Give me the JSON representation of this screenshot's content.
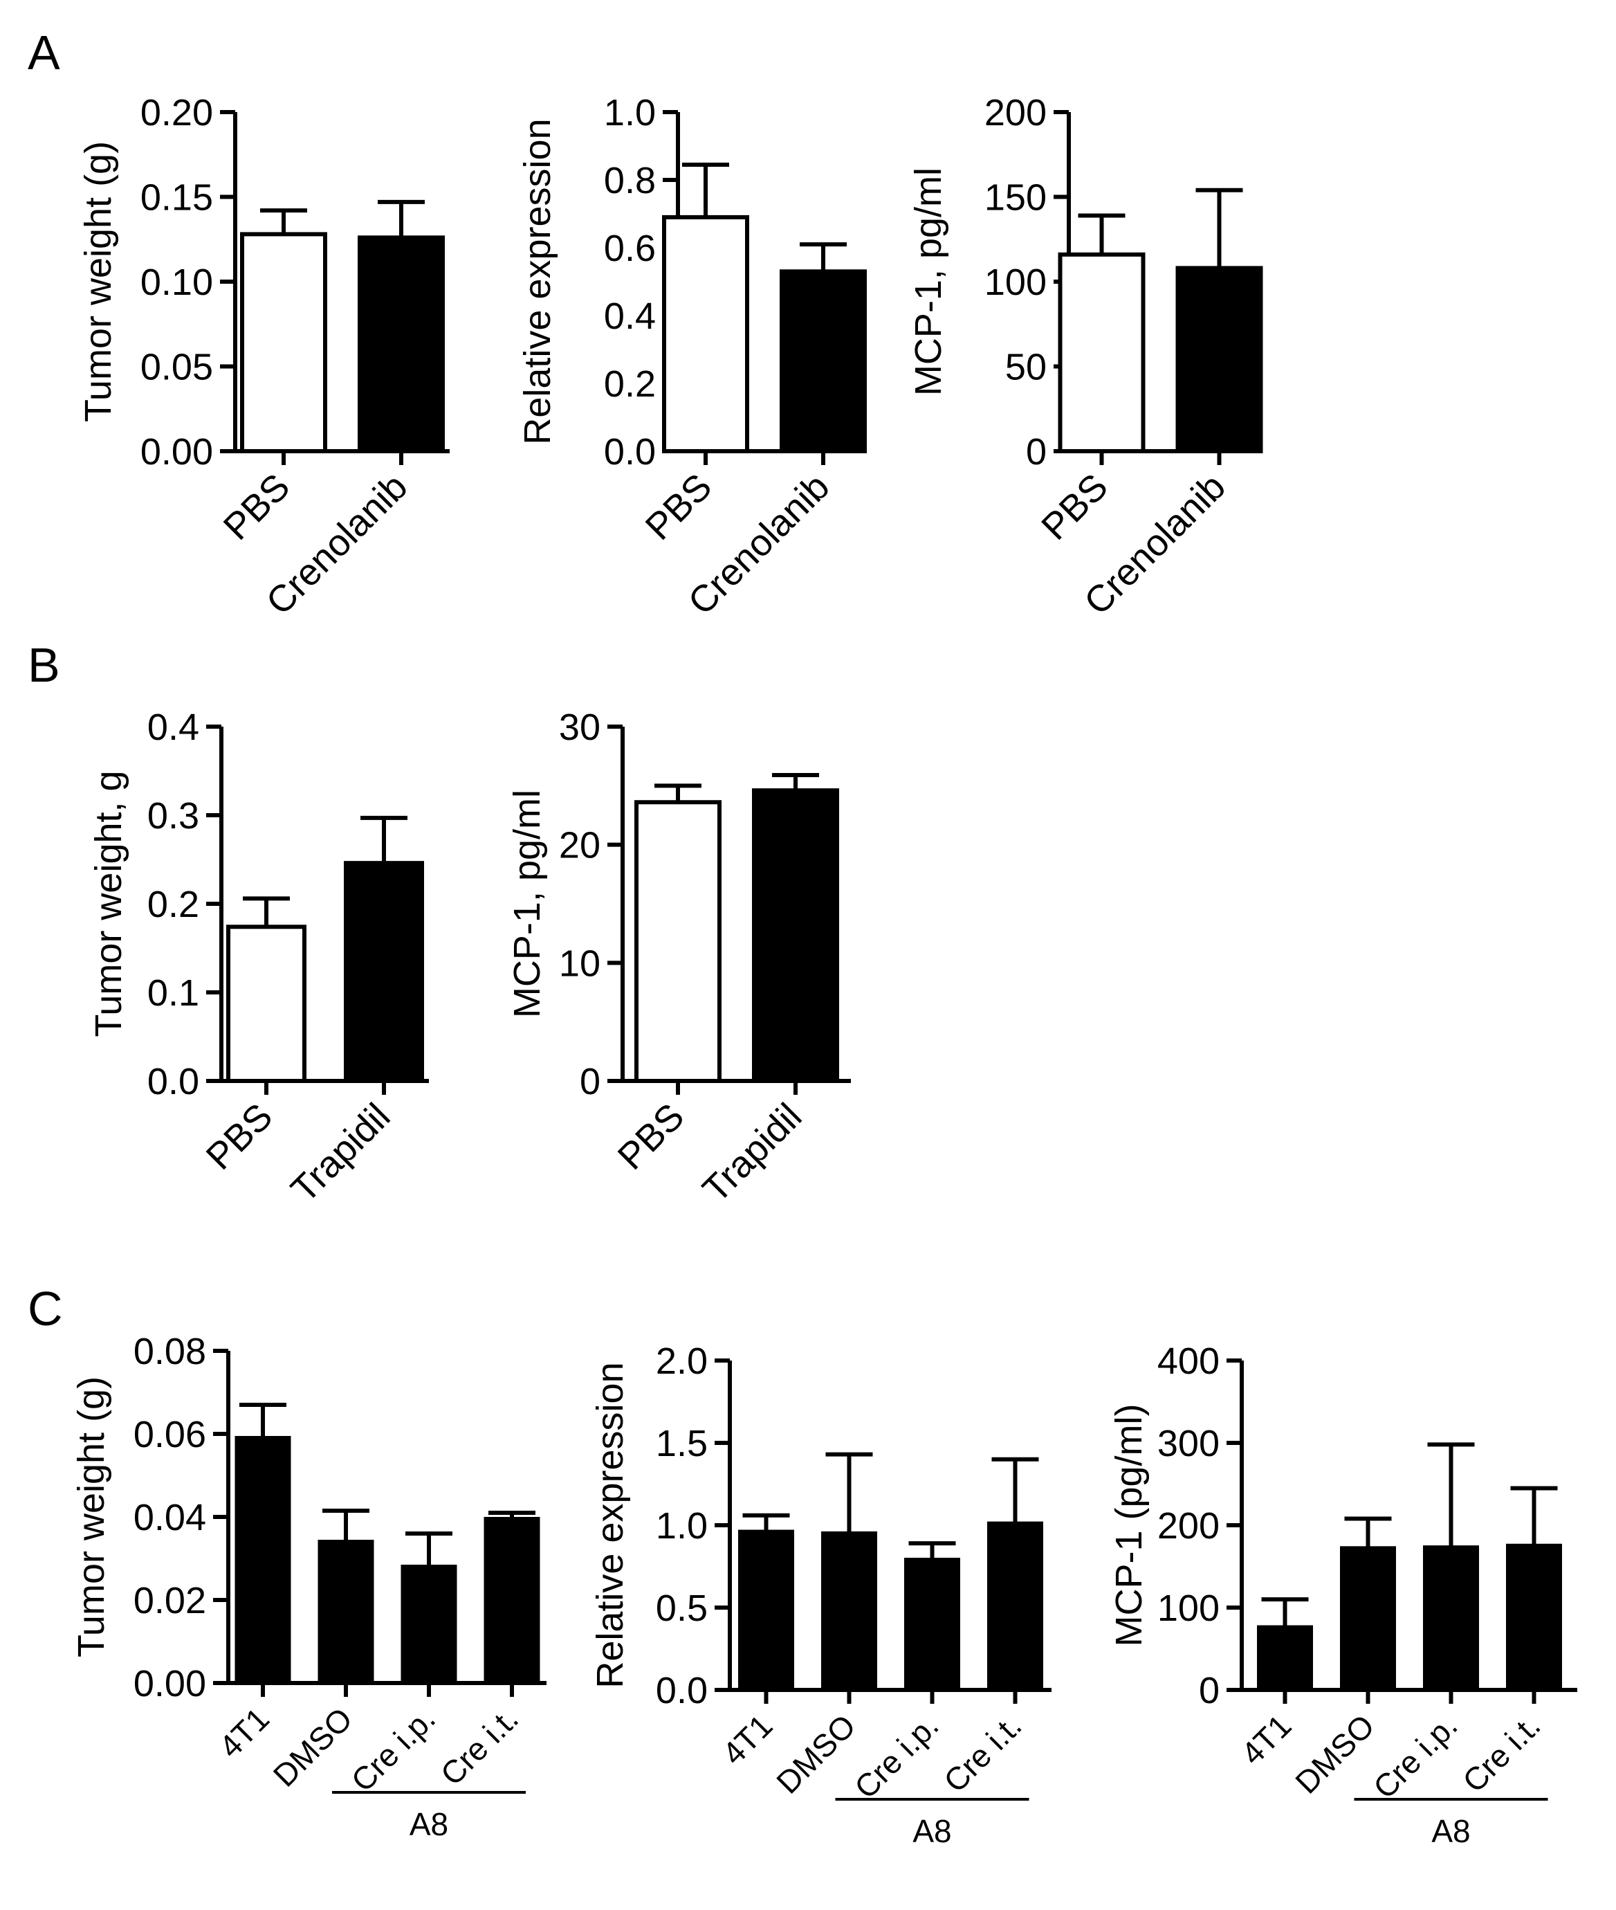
{
  "panels": [
    {
      "letter": "A"
    },
    {
      "letter": "B"
    },
    {
      "letter": "C"
    }
  ],
  "chart_data": [
    {
      "id": "A1",
      "panel": "A",
      "type": "bar",
      "title": "",
      "xlabel": "",
      "ylabel": "Tumor weight (g)",
      "ylim": [
        0,
        0.2
      ],
      "yticks": [
        "0.00",
        "0.05",
        "0.10",
        "0.15",
        "0.20"
      ],
      "categories": [
        "PBS",
        "Crenolanib"
      ],
      "values": [
        0.128,
        0.126
      ],
      "errors": [
        0.014,
        0.021
      ],
      "fills": [
        "#ffffff",
        "#000000"
      ]
    },
    {
      "id": "A2",
      "panel": "A",
      "type": "bar",
      "title": "",
      "xlabel": "",
      "ylabel": "Relative expression",
      "ylim": [
        0,
        1.0
      ],
      "yticks": [
        "0.0",
        "0.2",
        "0.4",
        "0.6",
        "0.8",
        "1.0"
      ],
      "categories": [
        "PBS",
        "Crenolanib"
      ],
      "values": [
        0.69,
        0.53
      ],
      "errors": [
        0.155,
        0.08
      ],
      "fills": [
        "#ffffff",
        "#000000"
      ]
    },
    {
      "id": "A3",
      "panel": "A",
      "type": "bar",
      "title": "",
      "xlabel": "",
      "ylabel": "MCP-1, pg/ml",
      "ylim": [
        0,
        200
      ],
      "yticks": [
        "0",
        "50",
        "100",
        "150",
        "200"
      ],
      "categories": [
        "PBS",
        "Crenolanib"
      ],
      "values": [
        116,
        108
      ],
      "errors": [
        23,
        46
      ],
      "fills": [
        "#ffffff",
        "#000000"
      ]
    },
    {
      "id": "B1",
      "panel": "B",
      "type": "bar",
      "title": "",
      "xlabel": "",
      "ylabel": "Tumor weight, g",
      "ylim": [
        0,
        0.4
      ],
      "yticks": [
        "0.0",
        "0.1",
        "0.2",
        "0.3",
        "0.4"
      ],
      "categories": [
        "PBS",
        "Trapidil"
      ],
      "values": [
        0.174,
        0.246
      ],
      "errors": [
        0.032,
        0.051
      ],
      "fills": [
        "#ffffff",
        "#000000"
      ]
    },
    {
      "id": "B2",
      "panel": "B",
      "type": "bar",
      "title": "",
      "xlabel": "",
      "ylabel": "MCP-1, pg/ml",
      "ylim": [
        0,
        30
      ],
      "yticks": [
        "0",
        "10",
        "20",
        "30"
      ],
      "categories": [
        "PBS",
        "Trapidil"
      ],
      "values": [
        23.6,
        24.6
      ],
      "errors": [
        1.4,
        1.3
      ],
      "fills": [
        "#ffffff",
        "#000000"
      ]
    },
    {
      "id": "C1",
      "panel": "C",
      "type": "bar",
      "title": "",
      "xlabel": "",
      "ylabel": "Tumor weight (g)",
      "ylim": [
        0,
        0.08
      ],
      "yticks": [
        "0.00",
        "0.02",
        "0.04",
        "0.06",
        "0.08"
      ],
      "categories": [
        "4T1",
        "DMSO",
        "Cre i.p.",
        "Cre i.t."
      ],
      "values": [
        0.059,
        0.034,
        0.028,
        0.0395
      ],
      "errors": [
        0.008,
        0.0075,
        0.008,
        0.0015
      ],
      "fills": [
        "#000000",
        "#000000",
        "#000000",
        "#000000"
      ],
      "bracket": {
        "label": "A8",
        "from": 1,
        "to": 3
      }
    },
    {
      "id": "C2",
      "panel": "C",
      "type": "bar",
      "title": "",
      "xlabel": "",
      "ylabel": "Relative expression",
      "ylim": [
        0,
        2.0
      ],
      "yticks": [
        "0.0",
        "0.5",
        "1.0",
        "1.5",
        "2.0"
      ],
      "categories": [
        "4T1",
        "DMSO",
        "Cre i.p.",
        "Cre i.t."
      ],
      "values": [
        0.96,
        0.95,
        0.79,
        1.01
      ],
      "errors": [
        0.1,
        0.48,
        0.1,
        0.39
      ],
      "fills": [
        "#000000",
        "#000000",
        "#000000",
        "#000000"
      ],
      "bracket": {
        "label": "A8",
        "from": 1,
        "to": 3
      }
    },
    {
      "id": "C3",
      "panel": "C",
      "type": "bar",
      "title": "",
      "xlabel": "",
      "ylabel": "MCP-1 (pg/ml)",
      "ylim": [
        0,
        400
      ],
      "yticks": [
        "0",
        "100",
        "200",
        "300",
        "400"
      ],
      "categories": [
        "4T1",
        "DMSO",
        "Cre i.p.",
        "Cre i.t."
      ],
      "values": [
        76,
        172,
        173,
        175
      ],
      "errors": [
        34,
        36,
        125,
        70
      ],
      "fills": [
        "#000000",
        "#000000",
        "#000000",
        "#000000"
      ],
      "bracket": {
        "label": "A8",
        "from": 1,
        "to": 3
      }
    }
  ]
}
